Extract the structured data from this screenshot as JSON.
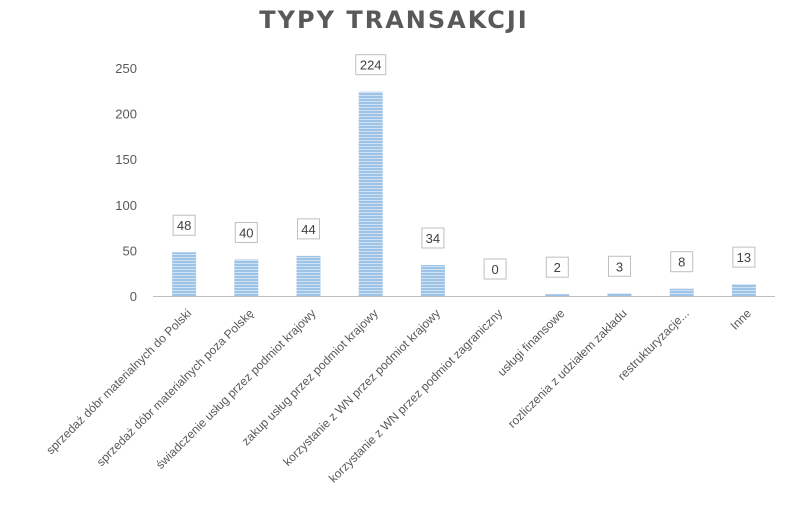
{
  "chart_data": {
    "type": "bar",
    "title": "TYPY TRANSAKCJI",
    "xlabel": "",
    "ylabel": "",
    "ylim": [
      0,
      250
    ],
    "yticks": [
      0,
      50,
      100,
      150,
      200,
      250
    ],
    "grid": false,
    "legend": "none",
    "bar_color": "#9dc3e6",
    "bar_stripe_color": "#c9ddf0",
    "categories": [
      "sprzedaż dóbr materialnych do Polski",
      "sprzedaż dóbr materialnych poza Polskę",
      "świadczenie usług przez podmiot krajowy",
      "zakup usług przez podmiot krajowy",
      "korzystanie z WN przez podmiot krajowy",
      "korzystanie z WN przez podmiot zagraniczny",
      "usługi finansowe",
      "rozliczenia z udziałem zakładu",
      "restrukturyzacje...",
      "Inne"
    ],
    "values": [
      48,
      40,
      44,
      224,
      34,
      0,
      2,
      3,
      8,
      13
    ],
    "data_labels": [
      "48",
      "40",
      "44",
      "224",
      "34",
      "0",
      "2",
      "3",
      "8",
      "13"
    ]
  }
}
